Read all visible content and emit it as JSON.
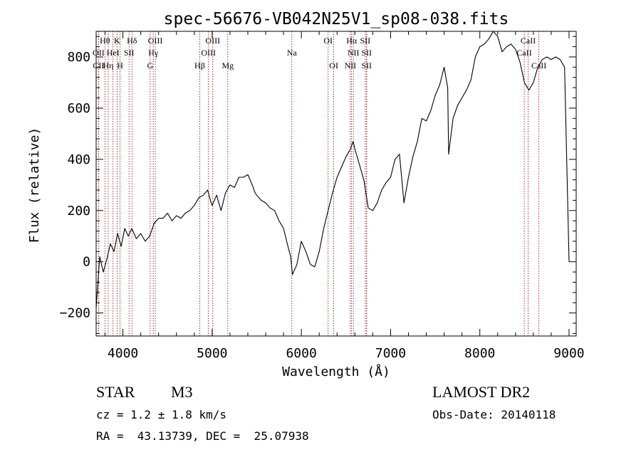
{
  "chart_data": {
    "type": "line",
    "title": "spec-56676-VB042N25V1_sp08-038.fits",
    "xlabel": "Wavelength (Å)",
    "ylabel": "Flux (relative)",
    "xlim": [
      3700,
      9080
    ],
    "ylim": [
      -290,
      900
    ],
    "xticks": [
      4000,
      5000,
      6000,
      7000,
      8000,
      9000
    ],
    "xtick_labels": [
      "4000",
      "5000",
      "6000",
      "7000",
      "8000",
      "9000"
    ],
    "yticks": [
      -200,
      0,
      200,
      400,
      600,
      800
    ],
    "ytick_labels": [
      "−200",
      "0",
      "200",
      "400",
      "600",
      "800"
    ],
    "grid": false,
    "legend": "none",
    "line_color": "#000000",
    "marker_color": "#8b0000",
    "series": [
      {
        "x": [
          3700,
          3740,
          3780,
          3820,
          3860,
          3900,
          3940,
          3980,
          4020,
          4060,
          4100,
          4150,
          4200,
          4250,
          4300,
          4350,
          4400,
          4450,
          4500,
          4550,
          4600,
          4650,
          4700,
          4750,
          4800,
          4850,
          4900,
          4950,
          4980,
          5000,
          5050,
          5100,
          5150,
          5200,
          5250,
          5300,
          5350,
          5400,
          5450,
          5480,
          5500,
          5550,
          5600,
          5650,
          5700,
          5750,
          5800,
          5850,
          5880,
          5900,
          5950,
          6000,
          6050,
          6100,
          6150,
          6200,
          6250,
          6300,
          6350,
          6400,
          6450,
          6500,
          6550,
          6580,
          6600,
          6650,
          6700,
          6750,
          6800,
          6850,
          6900,
          6950,
          7000,
          7050,
          7100,
          7150,
          7200,
          7250,
          7300,
          7350,
          7400,
          7450,
          7500,
          7550,
          7600,
          7640,
          7650,
          7700,
          7750,
          7800,
          7850,
          7900,
          7950,
          8000,
          8050,
          8100,
          8150,
          8200,
          8250,
          8300,
          8350,
          8400,
          8450,
          8500,
          8550,
          8600,
          8650,
          8700,
          8750,
          8800,
          8850,
          8900,
          8950,
          9000
        ],
        "y": [
          -180,
          20,
          -40,
          10,
          70,
          40,
          110,
          60,
          130,
          100,
          130,
          90,
          110,
          80,
          100,
          150,
          170,
          170,
          190,
          160,
          180,
          170,
          190,
          200,
          220,
          250,
          260,
          280,
          240,
          220,
          260,
          200,
          270,
          300,
          290,
          330,
          330,
          340,
          300,
          270,
          260,
          240,
          230,
          210,
          200,
          160,
          130,
          60,
          20,
          -50,
          -10,
          80,
          40,
          -10,
          -20,
          40,
          130,
          200,
          270,
          330,
          370,
          410,
          440,
          470,
          440,
          380,
          320,
          210,
          200,
          230,
          280,
          310,
          330,
          400,
          420,
          230,
          330,
          410,
          470,
          560,
          550,
          590,
          650,
          690,
          760,
          680,
          420,
          560,
          610,
          640,
          670,
          710,
          800,
          840,
          850,
          870,
          900,
          880,
          820,
          840,
          850,
          830,
          780,
          700,
          670,
          700,
          760,
          790,
          800,
          790,
          800,
          790,
          760,
          0
        ]
      }
    ],
    "line_markers": [
      {
        "label": "Hθ",
        "x": 3798,
        "row": 1
      },
      {
        "label": "OII",
        "x": 3727,
        "row": 2
      },
      {
        "label": "CII",
        "x": 3727,
        "row": 3
      },
      {
        "label": "Hη",
        "x": 3835,
        "row": 3
      },
      {
        "label": "K",
        "x": 3934,
        "row": 1
      },
      {
        "label": "HeI",
        "x": 3889,
        "row": 2
      },
      {
        "label": "H",
        "x": 3968,
        "row": 3
      },
      {
        "label": "Hδ",
        "x": 4101,
        "row": 1
      },
      {
        "label": "SII",
        "x": 4069,
        "row": 2
      },
      {
        "label": "OIII",
        "x": 4363,
        "row": 1
      },
      {
        "label": "Hγ",
        "x": 4340,
        "row": 2
      },
      {
        "label": "G",
        "x": 4305,
        "row": 3
      },
      {
        "label": "OIII",
        "x": 5007,
        "row": 1
      },
      {
        "label": "OIII",
        "x": 4959,
        "row": 2
      },
      {
        "label": "Hβ",
        "x": 4861,
        "row": 3
      },
      {
        "label": "Mg",
        "x": 5175,
        "row": 3
      },
      {
        "label": "Na",
        "x": 5893,
        "row": 2
      },
      {
        "label": "OI",
        "x": 6300,
        "row": 1
      },
      {
        "label": "OI",
        "x": 6363,
        "row": 3
      },
      {
        "label": "Hα",
        "x": 6563,
        "row": 1
      },
      {
        "label": "SII",
        "x": 6716,
        "row": 1
      },
      {
        "label": "NII",
        "x": 6583,
        "row": 2
      },
      {
        "label": "SII",
        "x": 6731,
        "row": 2
      },
      {
        "label": "NII",
        "x": 6548,
        "row": 3
      },
      {
        "label": "SII",
        "x": 6731,
        "row": 3
      },
      {
        "label": "CaII",
        "x": 8542,
        "row": 1
      },
      {
        "label": "CaII",
        "x": 8498,
        "row": 2
      },
      {
        "label": "CaII",
        "x": 8662,
        "row": 3
      }
    ]
  },
  "info": {
    "class": "STAR",
    "subclass": "M3",
    "survey": "LAMOST DR2",
    "cz": "cz = 1.2 ± 1.8 km/s",
    "obs_date": "Obs-Date: 20140118",
    "radec": "RA =  43.13739, DEC =  25.07938"
  }
}
